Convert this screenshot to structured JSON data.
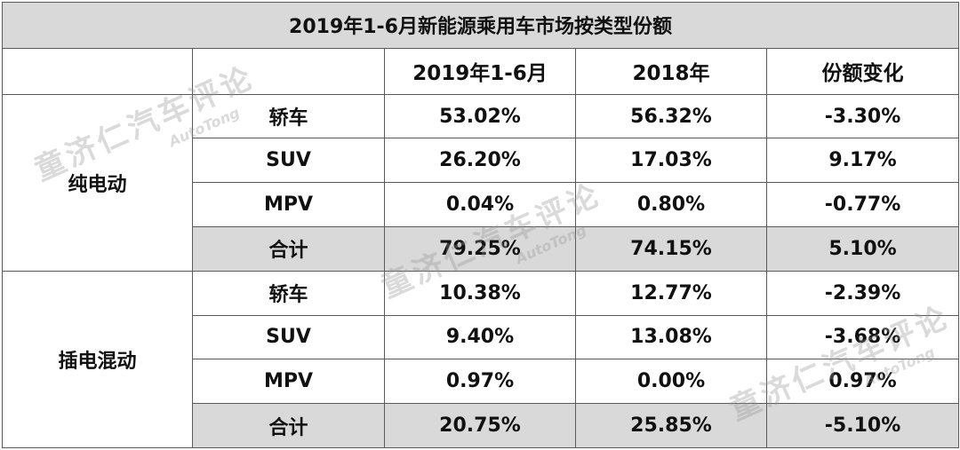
{
  "chart_data": {
    "type": "table",
    "title": "2019年1-6月新能源乘用车市场按类型份额",
    "columns": [
      "",
      "",
      "2019年1-6月",
      "2018年",
      "份额变化"
    ],
    "groups": [
      {
        "name": "纯电动",
        "rows": [
          {
            "type": "轿车",
            "v2019": "53.02%",
            "v2018": "56.32%",
            "change": "-3.30%",
            "sign": "neg"
          },
          {
            "type": "SUV",
            "v2019": "26.20%",
            "v2018": "17.03%",
            "change": "9.17%",
            "sign": "pos"
          },
          {
            "type": "MPV",
            "v2019": "0.04%",
            "v2018": "0.80%",
            "change": "-0.77%",
            "sign": "neg"
          },
          {
            "type": "合计",
            "v2019": "79.25%",
            "v2018": "74.15%",
            "change": "5.10%",
            "sign": "pos"
          }
        ]
      },
      {
        "name": "插电混动",
        "rows": [
          {
            "type": "轿车",
            "v2019": "10.38%",
            "v2018": "12.77%",
            "change": "-2.39%",
            "sign": "neg"
          },
          {
            "type": "SUV",
            "v2019": "9.40%",
            "v2018": "13.08%",
            "change": "-3.68%",
            "sign": "neg"
          },
          {
            "type": "MPV",
            "v2019": "0.97%",
            "v2018": "0.00%",
            "change": "0.97%",
            "sign": "pos"
          },
          {
            "type": "合计",
            "v2019": "20.75%",
            "v2018": "25.85%",
            "change": "-5.10%",
            "sign": "neg"
          }
        ]
      }
    ],
    "colors": {
      "v2019": "#2e75b6",
      "negative": "#2aa845",
      "positive": "#d81f26",
      "header_bg": "#d9d9d9"
    }
  },
  "watermark": {
    "text": "童济仁汽车评论",
    "sub": "AutoTong"
  }
}
